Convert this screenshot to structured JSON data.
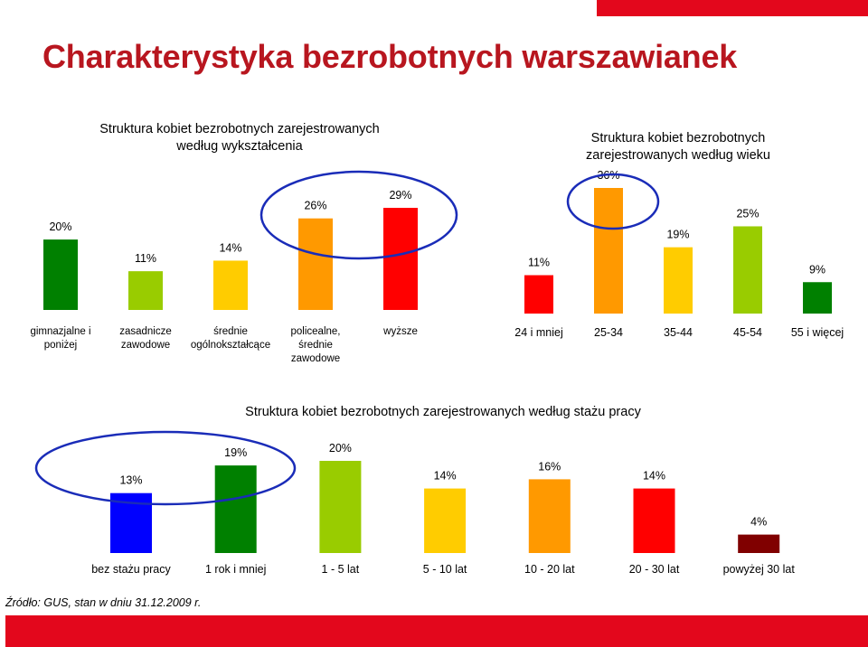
{
  "header": {
    "title": "Charakterystyka bezrobotnych warszawianek"
  },
  "source": "Źródło: GUS, stan w dniu 31.12.2009 r.",
  "chart_data": [
    {
      "type": "bar",
      "title_lines": [
        "Struktura kobiet bezrobotnych zarejestrowanych",
        "według wykształcenia"
      ],
      "categories": [
        [
          "gimnazjalne i",
          "poniżej"
        ],
        [
          "zasadnicze",
          "zawodowe"
        ],
        [
          "średnie",
          "ogólnokształcące"
        ],
        [
          "policealne,",
          "średnie",
          "zawodowe"
        ],
        [
          "wyższe"
        ]
      ],
      "values": [
        20,
        11,
        14,
        26,
        29
      ],
      "value_labels": [
        "20%",
        "11%",
        "14%",
        "26%",
        "29%"
      ],
      "colors": [
        "#008000",
        "#99cc00",
        "#ffcc00",
        "#ff9900",
        "#ff0000"
      ],
      "ylim": [
        0,
        29
      ],
      "grid": false,
      "highlight": [
        3,
        4
      ]
    },
    {
      "type": "bar",
      "title_lines": [
        "Struktura kobiet bezrobotnych",
        "zarejestrowanych według wieku"
      ],
      "categories": [
        [
          "24 i mniej"
        ],
        [
          "25-34"
        ],
        [
          "35-44"
        ],
        [
          "45-54"
        ],
        [
          "55 i więcej"
        ]
      ],
      "values": [
        11,
        36,
        19,
        25,
        9
      ],
      "value_labels": [
        "11%",
        "36%",
        "19%",
        "25%",
        "9%"
      ],
      "colors": [
        "#ff0000",
        "#ff9900",
        "#ffcc00",
        "#99cc00",
        "#008000"
      ],
      "ylim": [
        0,
        36
      ],
      "grid": false,
      "highlight": [
        1
      ]
    },
    {
      "type": "bar",
      "title_lines": [
        "Struktura kobiet bezrobotnych zarejestrowanych według stażu pracy"
      ],
      "categories": [
        [
          "bez stażu pracy"
        ],
        [
          "1 rok i mniej"
        ],
        [
          "1 - 5 lat"
        ],
        [
          "5 - 10 lat"
        ],
        [
          "10 - 20 lat"
        ],
        [
          "20 - 30 lat"
        ],
        [
          "powyżej 30 lat"
        ]
      ],
      "values": [
        13,
        19,
        20,
        14,
        16,
        14,
        4
      ],
      "value_labels": [
        "13%",
        "19%",
        "20%",
        "14%",
        "16%",
        "14%",
        "4%"
      ],
      "colors": [
        "#0000ff",
        "#008000",
        "#99cc00",
        "#ffcc00",
        "#ff9900",
        "#ff0000",
        "#800000"
      ],
      "ylim": [
        0,
        20
      ],
      "grid": false,
      "highlight": [
        0,
        1,
        2
      ]
    }
  ]
}
